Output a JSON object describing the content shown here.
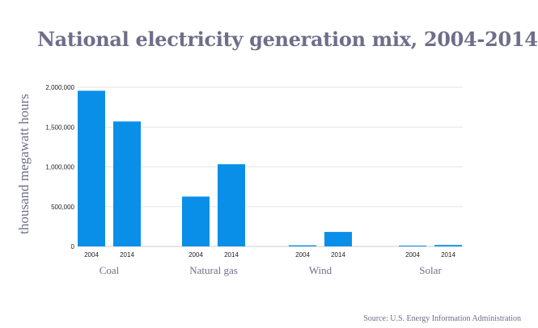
{
  "chart_data": {
    "type": "bar",
    "title": "National electricity generation mix, 2004-2014",
    "ylabel": "thousand megawatt hours",
    "xlabel": "",
    "ylim": [
      0,
      2000000
    ],
    "yticks": [
      0,
      500000,
      1000000,
      1500000,
      2000000
    ],
    "ytick_labels": [
      "0",
      "500,000",
      "1,000,000",
      "1,500,000",
      "2,000,000"
    ],
    "categories": [
      "Coal",
      "Natural gas",
      "Wind",
      "Solar"
    ],
    "series_labels": [
      "2004",
      "2014"
    ],
    "values": [
      [
        1956000,
        1570000
      ],
      [
        626000,
        1033000
      ],
      [
        14000,
        182000
      ],
      [
        600,
        18000
      ]
    ],
    "bar_color": "#0a8fe8",
    "grid": true
  },
  "source": "Source: U.S. Energy Information Administration"
}
